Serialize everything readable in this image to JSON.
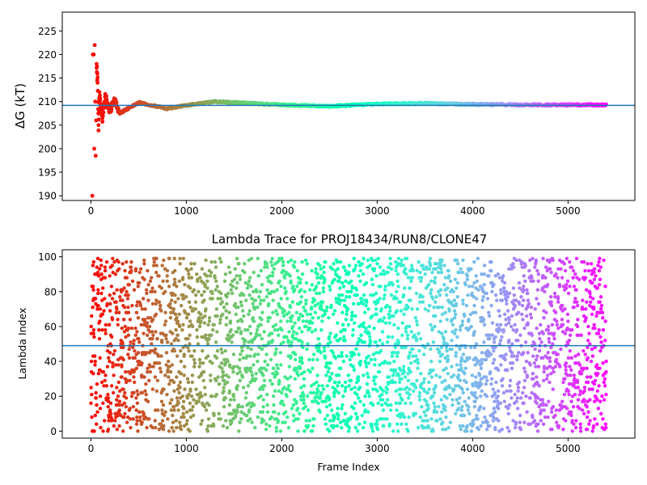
{
  "chart_data": [
    {
      "type": "scatter",
      "title": "",
      "xlabel": "",
      "ylabel": "ΔG (kT)",
      "xlim": [
        -300,
        5700
      ],
      "ylim": [
        189,
        229
      ],
      "xticks": [
        0,
        1000,
        2000,
        3000,
        4000,
        5000
      ],
      "xtick_labels": [
        "0",
        "1000",
        "2000",
        "3000",
        "4000",
        "5000"
      ],
      "yticks": [
        190,
        195,
        200,
        205,
        210,
        215,
        220,
        225
      ],
      "ytick_labels": [
        "190",
        "195",
        "200",
        "205",
        "210",
        "215",
        "220",
        "225"
      ],
      "hline": 209.2,
      "grid": false,
      "colormap": "rainbow (red at early frames → purple at late frames)",
      "series": [
        {
          "frames_range": [
            0,
            5400
          ],
          "converged_value": 209.3,
          "sample_points": [
            [
              15,
              190.0
            ],
            [
              20,
              220.0
            ],
            [
              30,
              220.0
            ],
            [
              35,
              200.0
            ],
            [
              40,
              222.0
            ],
            [
              45,
              210.0
            ],
            [
              50,
              198.5
            ],
            [
              55,
              206.0
            ],
            [
              60,
              218.0
            ],
            [
              70,
              214.0
            ],
            [
              80,
              205.0
            ],
            [
              90,
              212.0
            ],
            [
              100,
              209.0
            ],
            [
              120,
              206.5
            ],
            [
              150,
              211.0
            ],
            [
              200,
              208.0
            ],
            [
              250,
              210.5
            ],
            [
              300,
              207.5
            ],
            [
              500,
              209.8
            ],
            [
              800,
              208.5
            ],
            [
              1000,
              209.2
            ],
            [
              1300,
              210.0
            ],
            [
              2000,
              209.3
            ],
            [
              2500,
              209.0
            ],
            [
              3000,
              209.5
            ],
            [
              3500,
              209.6
            ],
            [
              4000,
              209.4
            ],
            [
              4500,
              209.3
            ],
            [
              5000,
              209.3
            ],
            [
              5400,
              209.3
            ]
          ]
        }
      ]
    },
    {
      "type": "scatter",
      "title": "Lambda Trace for PROJ18434/RUN8/CLONE47",
      "xlabel": "Frame Index",
      "ylabel": "Lambda Index",
      "xlim": [
        -300,
        5700
      ],
      "ylim": [
        -4,
        104
      ],
      "xticks": [
        0,
        1000,
        2000,
        3000,
        4000,
        5000
      ],
      "xtick_labels": [
        "0",
        "1000",
        "2000",
        "3000",
        "4000",
        "5000"
      ],
      "yticks": [
        0,
        20,
        40,
        60,
        80,
        100
      ],
      "ytick_labels": [
        "0",
        "20",
        "40",
        "60",
        "80",
        "100"
      ],
      "hline": 49,
      "grid": false,
      "colormap": "rainbow (red at early frames → purple at late frames)",
      "series": [
        {
          "frames_range": [
            0,
            5400
          ],
          "lambda_range": [
            0,
            99
          ],
          "distribution": "approximately uniform over 0–99 across all frames"
        }
      ]
    }
  ]
}
